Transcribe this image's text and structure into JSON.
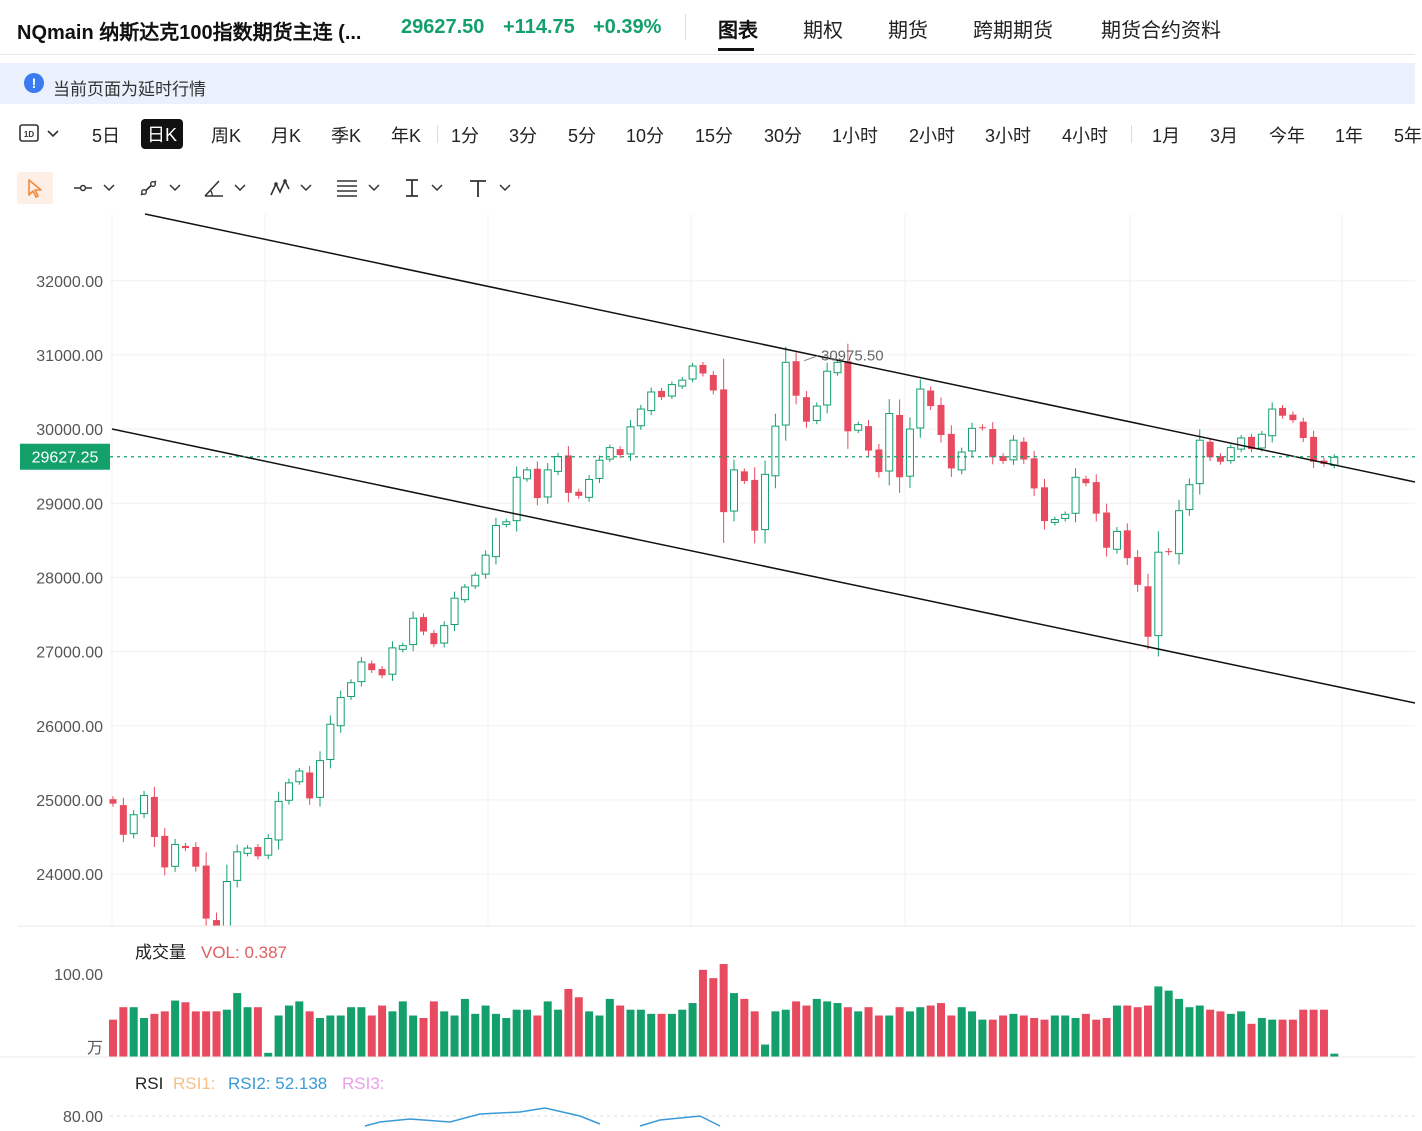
{
  "header": {
    "title": "NQmain 纳斯达克100指数期货主连 (...",
    "price": "29627.50",
    "change": "+114.75",
    "change_pct": "+0.39%",
    "tabs": [
      "图表",
      "期权",
      "期货",
      "跨期期货",
      "期货合约资料"
    ],
    "active_tab": "图表",
    "up_color": "#13a06b"
  },
  "notice": {
    "icon": "info-icon",
    "text": "当前页面为延时行情"
  },
  "periods": {
    "selector_label": "1D",
    "items": [
      "5日",
      "日K",
      "周K",
      "月K",
      "季K",
      "年K",
      "1分",
      "3分",
      "5分",
      "10分",
      "15分",
      "30分",
      "1小时",
      "2小时",
      "3小时",
      "4小时",
      "1月",
      "3月",
      "今年",
      "1年",
      "5年"
    ],
    "active": "日K"
  },
  "tools": [
    "cursor-arrow-icon",
    "horizontal-line-icon",
    "trend-line-icon",
    "angle-tool-icon",
    "pattern-icon",
    "fibonacci-icon",
    "text-cursor-icon",
    "text-tool-icon"
  ],
  "chart_data": {
    "type": "candlestick",
    "y_ticks": [
      "32000.00",
      "31000.00",
      "30000.00",
      "29000.00",
      "28000.00",
      "27000.00",
      "26000.00",
      "25000.00",
      "24000.00"
    ],
    "y_range": [
      23300,
      32900
    ],
    "current_price_label": "29627.25",
    "current_price": 29627.25,
    "high_annotation": "30975.50",
    "up_color": "#13a06b",
    "down_color": "#e84a5f",
    "closes": [
      24950,
      24530,
      24800,
      25060,
      24500,
      24090,
      24400,
      24350,
      24100,
      23400,
      22980,
      23900,
      24300,
      24350,
      24240,
      24480,
      24980,
      25230,
      25390,
      25020,
      25530,
      26020,
      26380,
      26580,
      26860,
      26750,
      26680,
      27050,
      27080,
      27450,
      27270,
      27100,
      27350,
      27720,
      27870,
      28030,
      28300,
      28700,
      28750,
      29350,
      29450,
      29070,
      29450,
      29630,
      29140,
      29100,
      29320,
      29580,
      29750,
      29650,
      30030,
      30270,
      30500,
      30430,
      30600,
      30660,
      30850,
      30750,
      30520,
      28880,
      29450,
      29300,
      28630,
      29390,
      30040,
      30900,
      30450,
      30100,
      30310,
      30780,
      30900,
      29970,
      30060,
      29710,
      29420,
      30210,
      29350,
      30000,
      30540,
      30310,
      29920,
      29470,
      29690,
      30010,
      30020,
      29620,
      29570,
      29850,
      29590,
      29200,
      28760,
      28780,
      28850,
      29350,
      29270,
      28860,
      28400,
      28620,
      28260,
      27900,
      27200,
      28340,
      28340,
      28900,
      29250,
      29850,
      29620,
      29560,
      29750,
      29880,
      29730,
      29930,
      30270,
      30180,
      30120,
      29880,
      29560,
      29530,
      29620
    ],
    "volume": {
      "label": "成交量",
      "vol_label": "VOL: 0.387",
      "y_ticks": [
        "100.00"
      ],
      "unit": "万",
      "values": [
        45,
        60,
        60,
        47,
        52,
        55,
        68,
        66,
        55,
        55,
        55,
        57,
        77,
        60,
        60,
        5,
        50,
        62,
        67,
        55,
        47,
        50,
        50,
        60,
        60,
        50,
        62,
        55,
        67,
        50,
        47,
        67,
        55,
        50,
        70,
        52,
        62,
        52,
        47,
        57,
        57,
        50,
        67,
        57,
        82,
        72,
        55,
        50,
        70,
        62,
        57,
        57,
        52,
        52,
        52,
        57,
        65,
        105,
        95,
        112,
        77,
        70,
        55,
        15,
        55,
        57,
        67,
        62,
        70,
        67,
        65,
        60,
        55,
        60,
        50,
        50,
        60,
        55,
        60,
        62,
        65,
        50,
        60,
        55,
        45,
        45,
        50,
        52,
        50,
        47,
        45,
        50,
        50,
        47,
        52,
        45,
        47,
        62,
        62,
        60,
        62,
        85,
        80,
        70,
        60,
        62,
        57,
        55,
        52,
        55,
        40,
        47,
        45,
        45,
        45,
        57,
        57,
        57,
        4
      ],
      "up_color": "#13a06b",
      "down_color": "#e84a5f"
    },
    "rsi": {
      "label": "RSI",
      "rsi1": "RSI1:",
      "rsi2": "RSI2: 52.138",
      "rsi3": "RSI3:",
      "y_tick": "80.00"
    }
  }
}
